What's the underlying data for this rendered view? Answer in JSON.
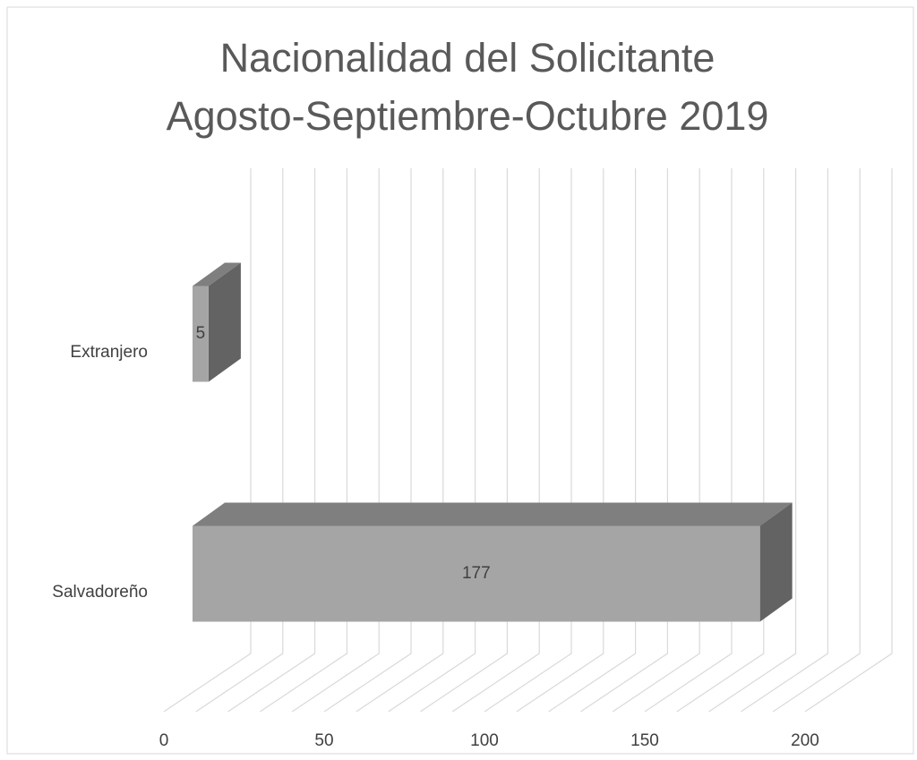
{
  "chart_data": {
    "type": "bar3d_horizontal",
    "title": "Nacionalidad del Solicitante",
    "subtitle": "Agosto-Septiembre-Octubre 2019",
    "categories": [
      "Extranjero",
      "Salvadoreño"
    ],
    "values": [
      5,
      177
    ],
    "colors": {
      "front": "#a5a5a5",
      "top": "#7f7f7f",
      "side": "#636363"
    },
    "xlim": [
      0,
      200
    ],
    "xticks": [
      0,
      50,
      100,
      150,
      200
    ],
    "minor_xticks": [
      0,
      10,
      20,
      30,
      40,
      50,
      60,
      70,
      80,
      90,
      100,
      110,
      120,
      130,
      140,
      150,
      160,
      170,
      180,
      190,
      200
    ],
    "grid": true
  }
}
